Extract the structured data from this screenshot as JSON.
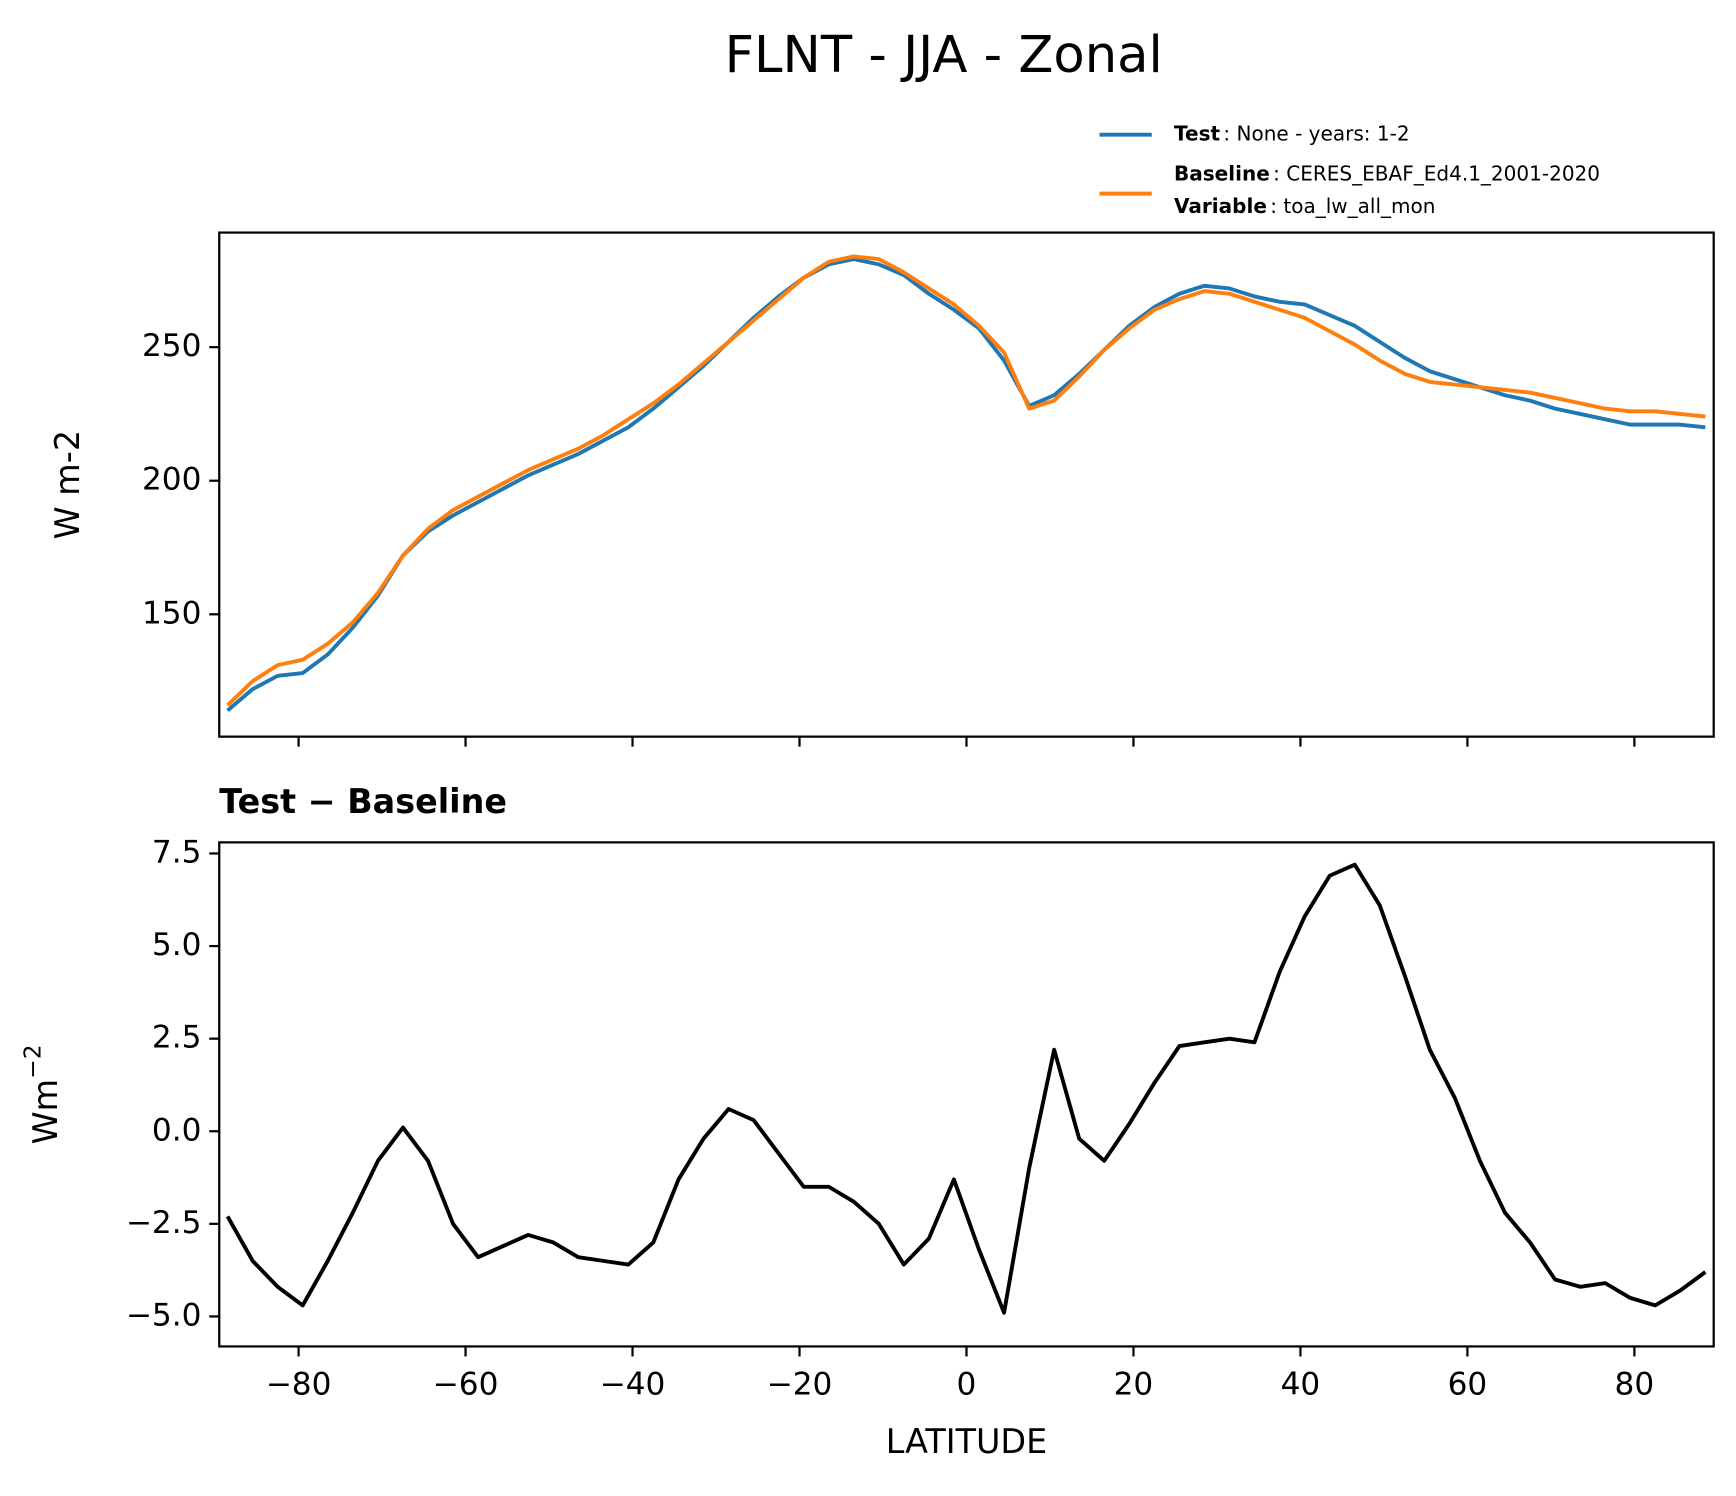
{
  "title": "FLNT - JJA - Zonal",
  "chart_data": [
    {
      "type": "line",
      "ylabel": "W m-2",
      "x": [
        -88.5,
        -85.5,
        -82.5,
        -79.5,
        -76.5,
        -73.5,
        -70.5,
        -67.5,
        -64.5,
        -61.5,
        -58.5,
        -55.5,
        -52.5,
        -49.5,
        -46.5,
        -43.5,
        -40.5,
        -37.5,
        -34.5,
        -31.5,
        -28.5,
        -25.5,
        -22.5,
        -19.5,
        -16.5,
        -13.5,
        -10.5,
        -7.5,
        -4.5,
        -1.5,
        1.5,
        4.5,
        7.5,
        10.5,
        13.5,
        16.5,
        19.5,
        22.5,
        25.5,
        28.5,
        31.5,
        34.5,
        37.5,
        40.5,
        43.5,
        46.5,
        49.5,
        52.5,
        55.5,
        58.5,
        61.5,
        64.5,
        67.5,
        70.5,
        73.5,
        76.5,
        79.5,
        82.5,
        85.5,
        88.5
      ],
      "series": [
        {
          "name": "Test",
          "legend_text": ": None - years: 1-2",
          "color": "#1f77b4",
          "values": [
            114,
            122,
            127,
            128,
            135,
            145,
            157,
            172,
            181,
            187,
            192,
            197,
            202,
            206,
            210,
            215,
            220,
            227,
            235,
            243,
            252,
            261,
            269,
            276,
            281,
            283,
            281,
            277,
            270,
            264,
            257,
            245,
            228,
            232,
            240,
            249,
            258,
            265,
            270,
            273,
            272,
            269,
            267,
            266,
            262,
            258,
            252,
            246,
            241,
            238,
            235,
            232,
            230,
            227,
            225,
            223,
            221,
            221,
            221,
            220
          ]
        },
        {
          "name": "Baseline",
          "legend_text": ": CERES_EBAF_Ed4.1_2001-2020",
          "legend_extra_name": "Variable",
          "legend_extra_text": ": toa_lw_all_mon",
          "color": "#ff7f0e",
          "values": [
            116,
            125,
            131,
            133,
            139,
            147,
            158,
            172,
            182,
            189,
            194,
            199,
            204,
            208,
            212,
            217,
            223,
            229,
            236,
            244,
            252,
            260,
            268,
            276,
            282,
            284,
            283,
            278,
            272,
            266,
            258,
            248,
            227,
            230,
            239,
            249,
            257,
            264,
            268,
            271,
            270,
            267,
            264,
            261,
            256,
            251,
            245,
            240,
            237,
            236,
            235,
            234,
            233,
            231,
            229,
            227,
            226,
            226,
            225,
            224
          ]
        }
      ],
      "xlim": [
        -89.5,
        89.5
      ],
      "ylim": [
        104.2,
        292.9
      ],
      "xticks": [
        -80,
        -60,
        -40,
        -20,
        0,
        20,
        40,
        60,
        80
      ],
      "xtick_labels": false,
      "yticks": [
        150,
        200,
        250
      ]
    },
    {
      "type": "line",
      "title": "Test − Baseline",
      "xlabel": "LATITUDE",
      "ylabel": "Wm",
      "ylabel_superscript": "−2",
      "x": [
        -88.5,
        -85.5,
        -82.5,
        -79.5,
        -76.5,
        -73.5,
        -70.5,
        -67.5,
        -64.5,
        -61.5,
        -58.5,
        -55.5,
        -52.5,
        -49.5,
        -46.5,
        -43.5,
        -40.5,
        -37.5,
        -34.5,
        -31.5,
        -28.5,
        -25.5,
        -22.5,
        -19.5,
        -16.5,
        -13.5,
        -10.5,
        -7.5,
        -4.5,
        -1.5,
        1.5,
        4.5,
        7.5,
        10.5,
        13.5,
        16.5,
        19.5,
        22.5,
        25.5,
        28.5,
        31.5,
        34.5,
        37.5,
        40.5,
        43.5,
        46.5,
        49.5,
        52.5,
        55.5,
        58.5,
        61.5,
        64.5,
        67.5,
        70.5,
        73.5,
        76.5,
        79.5,
        82.5,
        85.5,
        88.5
      ],
      "series": [
        {
          "color": "#000000",
          "values": [
            -2.3,
            -3.5,
            -4.2,
            -4.7,
            -3.5,
            -2.2,
            -0.8,
            0.1,
            -0.8,
            -2.5,
            -3.4,
            -3.1,
            -2.8,
            -3.0,
            -3.4,
            -3.5,
            -3.6,
            -3.0,
            -1.3,
            -0.2,
            0.6,
            0.3,
            -0.6,
            -1.5,
            -1.5,
            -1.9,
            -2.5,
            -3.6,
            -2.9,
            -1.3,
            -3.2,
            -4.9,
            -1.0,
            2.2,
            -0.2,
            -0.8,
            0.2,
            1.3,
            2.3,
            2.4,
            2.5,
            2.4,
            4.3,
            5.8,
            6.9,
            7.2,
            6.1,
            4.2,
            2.2,
            0.9,
            -0.8,
            -2.2,
            -3.0,
            -4.0,
            -4.2,
            -4.1,
            -4.5,
            -4.7,
            -4.3,
            -3.8
          ]
        }
      ],
      "xlim": [
        -89.5,
        89.5
      ],
      "ylim": [
        -5.81,
        7.8
      ],
      "xticks": [
        {
          "value": -80,
          "label": "−80"
        },
        {
          "value": -60,
          "label": "−60"
        },
        {
          "value": -40,
          "label": "−40"
        },
        {
          "value": -20,
          "label": "−20"
        },
        0,
        20,
        40,
        60,
        80
      ],
      "xtick_labels": true,
      "yticks": [
        {
          "value": -5,
          "label": "−5.0"
        },
        {
          "value": -2.5,
          "label": "−2.5"
        },
        {
          "value": 0,
          "label": "0.0"
        },
        {
          "value": 2.5,
          "label": "2.5"
        },
        {
          "value": 5,
          "label": "5.0"
        },
        {
          "value": 7.5,
          "label": "7.5"
        }
      ]
    }
  ]
}
